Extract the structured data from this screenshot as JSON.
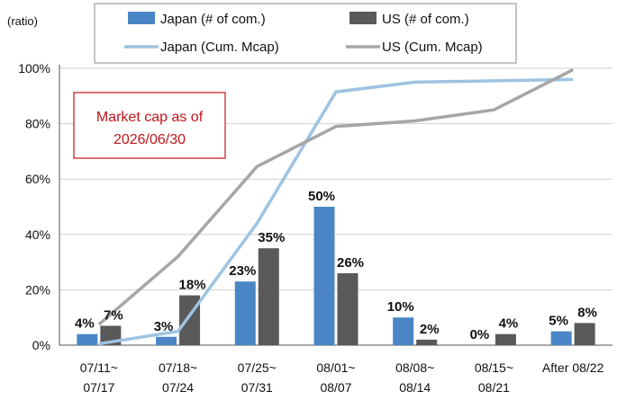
{
  "chart_data": {
    "type": "bar",
    "y_unit_label": "(ratio)",
    "ylim": [
      0,
      1.0
    ],
    "y_ticks": [
      "0%",
      "20%",
      "40%",
      "60%",
      "80%",
      "100%"
    ],
    "categories": [
      [
        "07/11~",
        "07/17"
      ],
      [
        "07/18~",
        "07/24"
      ],
      [
        "07/25~",
        "07/31"
      ],
      [
        "08/01~",
        "08/07"
      ],
      [
        "08/08~",
        "08/14"
      ],
      [
        "08/15~",
        "08/21"
      ],
      [
        "After 08/22"
      ]
    ],
    "series": [
      {
        "name": "Japan (# of com.)",
        "kind": "bar",
        "color": "#4a86c5",
        "values": [
          0.04,
          0.03,
          0.23,
          0.5,
          0.1,
          0.0,
          0.05
        ],
        "labels": [
          "4%",
          "3%",
          "23%",
          "50%",
          "10%",
          "0%",
          "5%"
        ]
      },
      {
        "name": "US (# of com.)",
        "kind": "bar",
        "color": "#595959",
        "values": [
          0.07,
          0.18,
          0.35,
          0.26,
          0.02,
          0.04,
          0.08
        ],
        "labels": [
          "7%",
          "18%",
          "35%",
          "26%",
          "2%",
          "4%",
          "8%"
        ]
      },
      {
        "name": "Japan (Cum. Mcap)",
        "kind": "line",
        "color": "#9ec3e2",
        "values": [
          0.005,
          0.05,
          0.44,
          0.915,
          0.95,
          0.955,
          0.96
        ]
      },
      {
        "name": "US (Cum. Mcap)",
        "kind": "line",
        "color": "#a6a6a6",
        "values": [
          0.075,
          0.32,
          0.645,
          0.79,
          0.81,
          0.85,
          0.995
        ]
      }
    ],
    "annotation": [
      "Market cap as of",
      "2026/06/30"
    ],
    "legend": "top"
  }
}
